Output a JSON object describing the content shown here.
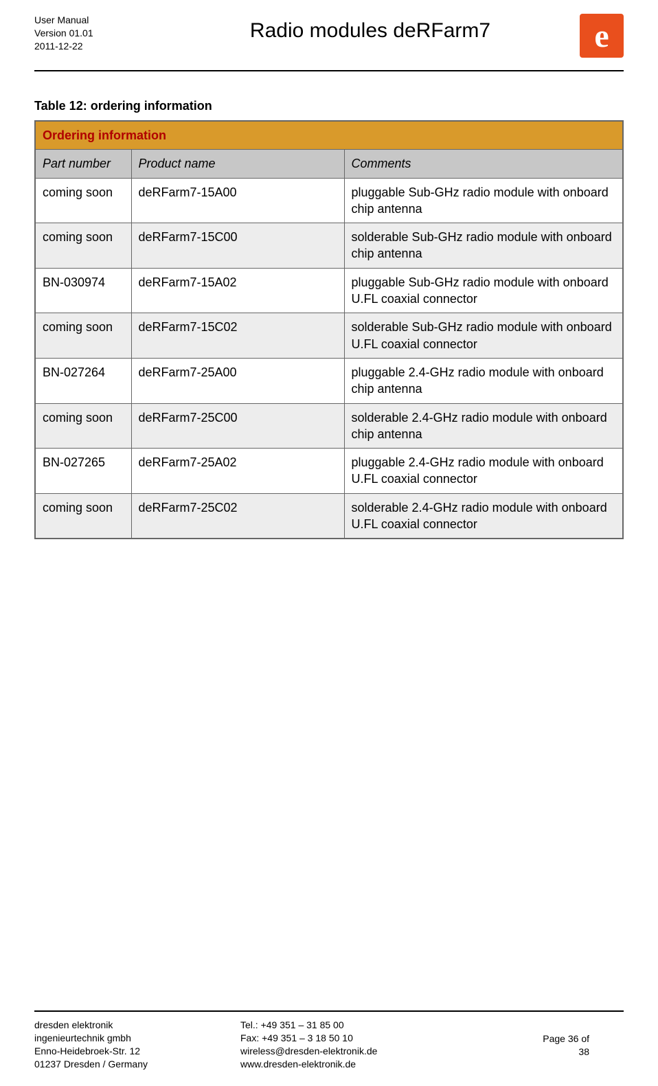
{
  "header": {
    "doc_type": "User Manual",
    "version": "Version 01.01",
    "date": "2011-12-22",
    "title": "Radio modules deRFarm7"
  },
  "table": {
    "caption": "Table 12: ordering information",
    "title": "Ordering information",
    "columns": [
      "Part number",
      "Product name",
      "Comments"
    ],
    "rows": [
      [
        "coming soon",
        "deRFarm7-15A00",
        "pluggable Sub-GHz radio module with onboard chip antenna"
      ],
      [
        "coming soon",
        "deRFarm7-15C00",
        "solderable Sub-GHz radio module with onboard chip antenna"
      ],
      [
        "BN-030974",
        "deRFarm7-15A02",
        "pluggable Sub-GHz radio module with onboard U.FL coaxial connector"
      ],
      [
        "coming soon",
        "deRFarm7-15C02",
        "solderable Sub-GHz radio module with onboard U.FL coaxial connector"
      ],
      [
        "BN-027264",
        "deRFarm7-25A00",
        "pluggable 2.4-GHz radio module with onboard chip antenna"
      ],
      [
        "coming soon",
        "deRFarm7-25C00",
        "solderable 2.4-GHz radio module with onboard chip antenna"
      ],
      [
        "BN-027265",
        "deRFarm7-25A02",
        "pluggable 2.4-GHz radio module with onboard U.FL coaxial connector"
      ],
      [
        "coming soon",
        "deRFarm7-25C02",
        "solderable 2.4-GHz radio module with onboard U.FL coaxial connector"
      ]
    ],
    "colors": {
      "title_bg": "#d99a2b",
      "title_fg": "#b00000",
      "head_bg": "#c7c7c7",
      "alt_bg": "#ededed",
      "border": "#666666"
    }
  },
  "footer": {
    "addr_line1": "dresden elektronik",
    "addr_line2": "ingenieurtechnik gmbh",
    "addr_line3": "Enno-Heidebroek-Str. 12",
    "addr_line4": "01237 Dresden / Germany",
    "tel": "Tel.: +49 351 – 31 85 00",
    "fax": "Fax: +49 351 – 3 18 50 10",
    "email": "wireless@dresden-elektronik.de",
    "web": "www.dresden-elektronik.de",
    "page": "Page 36 of 38"
  }
}
